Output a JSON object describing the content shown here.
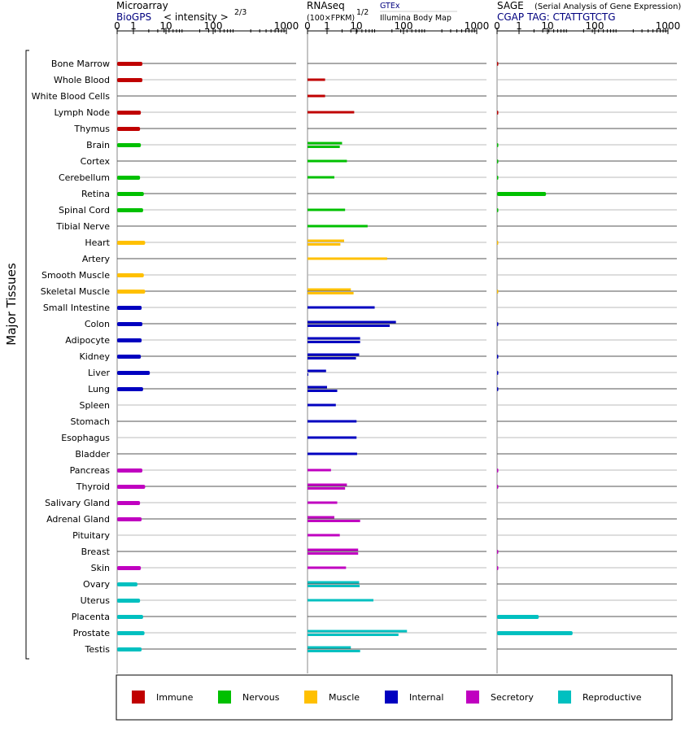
{
  "chart_data": {
    "type": "bar",
    "y_axis_label": "Major Tissues",
    "colors": {
      "immune": "#c00000",
      "nervous": "#00c000",
      "muscle": "#ffc000",
      "internal": "#0000c0",
      "secretory": "#c000c0",
      "reproductive": "#00c0c0"
    },
    "legend": [
      {
        "key": "immune",
        "label": "Immune"
      },
      {
        "key": "nervous",
        "label": "Nervous"
      },
      {
        "key": "muscle",
        "label": "Muscle"
      },
      {
        "key": "internal",
        "label": "Internal"
      },
      {
        "key": "secretory",
        "label": "Secretory"
      },
      {
        "key": "reproductive",
        "label": "Reproductive"
      }
    ],
    "tick_labels": [
      "0",
      "1",
      "10",
      "100",
      "1000"
    ],
    "tick_values": [
      0,
      1,
      10,
      100,
      1000
    ],
    "panels": [
      {
        "id": "microarray",
        "title": "Microarray",
        "subtitle_link": "BioGPS",
        "subtitle_text": "< intensity >",
        "subtitle_exponent": "2/3",
        "xlim": [
          0,
          1000
        ]
      },
      {
        "id": "rnaseq",
        "title": "RNAseq",
        "subtitle_text": "(100×FPKM)",
        "subtitle_exponent": "1/2",
        "source_link": "GTEx",
        "source_text": "Illumina Body Map",
        "xlim": [
          0,
          1000
        ]
      },
      {
        "id": "sage",
        "title": "SAGE",
        "title_note": "(Serial Analysis of Gene Expression)",
        "subtitle_link": "CGAP TAG: CTATTGTCTG",
        "xlim": [
          0,
          1000
        ]
      }
    ],
    "tissues": [
      {
        "name": "Bone Marrow",
        "group": "immune",
        "micro": 1.5,
        "rna": [],
        "sage": 0.02
      },
      {
        "name": "Whole Blood",
        "group": "immune",
        "micro": 1.5,
        "rna": [
          0.9
        ],
        "sage": 0
      },
      {
        "name": "White Blood Cells",
        "group": "immune",
        "micro": 0,
        "rna": [
          0.9
        ],
        "sage": 0
      },
      {
        "name": "Lymph Node",
        "group": "immune",
        "micro": 1.4,
        "rna": [
          3.5
        ],
        "sage": 0.02
      },
      {
        "name": "Thymus",
        "group": "immune",
        "micro": 1.35,
        "rna": [],
        "sage": 0
      },
      {
        "name": "Brain",
        "group": "nervous",
        "micro": 1.4,
        "rna": [
          2.0,
          1.8
        ],
        "sage": 0.02
      },
      {
        "name": "Cortex",
        "group": "nervous",
        "micro": 0,
        "rna": [
          2.5
        ],
        "sage": 0.02
      },
      {
        "name": "Cerebellum",
        "group": "nervous",
        "micro": 1.35,
        "rna": [
          1.4
        ],
        "sage": 0.02
      },
      {
        "name": "Retina",
        "group": "nervous",
        "micro": 1.6,
        "rna": [],
        "sage": 3.5
      },
      {
        "name": "Spinal Cord",
        "group": "nervous",
        "micro": 1.55,
        "rna": [
          2.3
        ],
        "sage": 0.02
      },
      {
        "name": "Tibial Nerve",
        "group": "nervous",
        "micro": 0,
        "rna": [
          6.5
        ],
        "sage": 0
      },
      {
        "name": "Heart",
        "group": "muscle",
        "micro": 1.7,
        "rna": [
          2.2,
          1.85
        ],
        "sage": 0.02
      },
      {
        "name": "Artery",
        "group": "muscle",
        "micro": 0,
        "rna": [
          16
        ],
        "sage": 0
      },
      {
        "name": "Smooth Muscle",
        "group": "muscle",
        "micro": 1.6,
        "rna": [],
        "sage": 0
      },
      {
        "name": "Skeletal Muscle",
        "group": "muscle",
        "micro": 1.7,
        "rna": [
          3.0,
          3.4
        ],
        "sage": 0.02
      },
      {
        "name": "Small Intestine",
        "group": "internal",
        "micro": 1.45,
        "rna": [
          9
        ],
        "sage": 0
      },
      {
        "name": "Colon",
        "group": "internal",
        "micro": 1.5,
        "rna": [
          24,
          18
        ],
        "sage": 0.02
      },
      {
        "name": "Adipocyte",
        "group": "internal",
        "micro": 1.45,
        "rna": [
          4.6,
          4.6
        ],
        "sage": 0
      },
      {
        "name": "Kidney",
        "group": "internal",
        "micro": 1.4,
        "rna": [
          4.4,
          3.8
        ],
        "sage": 0.02
      },
      {
        "name": "Liver",
        "group": "internal",
        "micro": 2.1,
        "rna": [
          0.95,
          0.02
        ],
        "sage": 0.02
      },
      {
        "name": "Lung",
        "group": "internal",
        "micro": 1.55,
        "rna": [
          1.0,
          1.6
        ],
        "sage": 0.02
      },
      {
        "name": "Spleen",
        "group": "internal",
        "micro": 0,
        "rna": [
          1.5
        ],
        "sage": 0
      },
      {
        "name": "Stomach",
        "group": "internal",
        "micro": 0,
        "rna": [
          3.9
        ],
        "sage": 0
      },
      {
        "name": "Esophagus",
        "group": "internal",
        "micro": 0,
        "rna": [
          3.9
        ],
        "sage": 0
      },
      {
        "name": "Bladder",
        "group": "internal",
        "micro": 0,
        "rna": [
          4.0
        ],
        "sage": 0
      },
      {
        "name": "Pancreas",
        "group": "secretory",
        "micro": 1.5,
        "rna": [
          1.2
        ],
        "sage": 0.02
      },
      {
        "name": "Thyroid",
        "group": "secretory",
        "micro": 1.7,
        "rna": [
          2.5,
          2.3
        ],
        "sage": 0.02
      },
      {
        "name": "Salivary Gland",
        "group": "secretory",
        "micro": 1.35,
        "rna": [
          1.6
        ],
        "sage": 0
      },
      {
        "name": "Adrenal Gland",
        "group": "secretory",
        "micro": 1.45,
        "rna": [
          1.4,
          4.6
        ],
        "sage": 0
      },
      {
        "name": "Pituitary",
        "group": "secretory",
        "micro": 0,
        "rna": [
          1.8
        ],
        "sage": 0
      },
      {
        "name": "Breast",
        "group": "secretory",
        "micro": 0,
        "rna": [
          4.2,
          4.2
        ],
        "sage": 0.02
      },
      {
        "name": "Skin",
        "group": "secretory",
        "micro": 1.4,
        "rna": [
          2.4
        ],
        "sage": 0.02
      },
      {
        "name": "Ovary",
        "group": "reproductive",
        "micro": 1.2,
        "rna": [
          4.4,
          4.5
        ],
        "sage": 0
      },
      {
        "name": "Uterus",
        "group": "reproductive",
        "micro": 1.35,
        "rna": [
          8.5
        ],
        "sage": 0
      },
      {
        "name": "Placenta",
        "group": "reproductive",
        "micro": 1.55,
        "rna": [],
        "sage": 2.5
      },
      {
        "name": "Prostate",
        "group": "reproductive",
        "micro": 1.65,
        "rna": [
          40,
          27
        ],
        "sage": 12
      },
      {
        "name": "Testis",
        "group": "reproductive",
        "micro": 1.45,
        "rna": [
          3.0,
          4.6
        ],
        "sage": 0
      }
    ]
  }
}
